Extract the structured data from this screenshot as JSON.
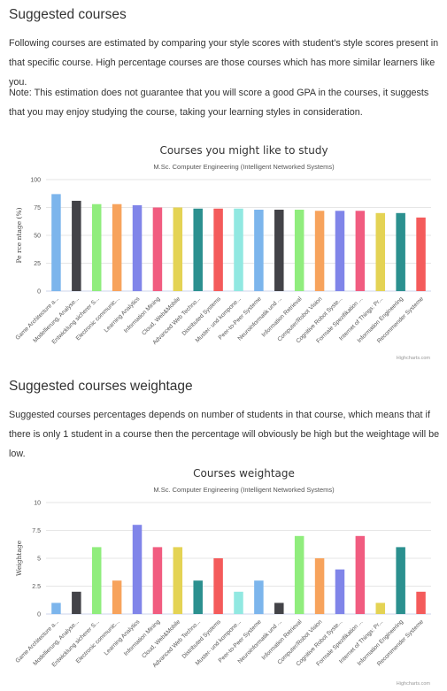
{
  "section1": {
    "heading": "Suggested courses",
    "para1": "Following courses are estimated by comparing your style scores with student's style scores present in that specific course. High percentage courses are those courses which has more similar learners like you.",
    "para2": "Note: This estimation does not guarantee that you will score a good GPA in the courses, it suggests that you may enjoy studying the course, taking your learning styles in consideration."
  },
  "section2": {
    "heading": "Suggested courses weightage",
    "para1": "Suggested courses percentages depends on number of students in that course, which means that if there is only 1 student in a course then the percentage will obviously be high but the weightage will be low."
  },
  "chart_data": [
    {
      "type": "bar",
      "title": "Courses you might like to study",
      "subtitle": "M.Sc. Computer Engineering (Intelligent Networked Systems)",
      "ylabel": "Pe rce ntage (%)",
      "xlabel": "",
      "ylim": [
        0,
        100
      ],
      "yticks": [
        "0",
        "25",
        "50",
        "75",
        "100"
      ],
      "grid": true,
      "legend": "none",
      "credit": "Highcharts.com",
      "categories": [
        "Game Architecture a...",
        "Modellierung, Analyse...",
        "Entwicklung sicherer S...",
        "Electronic communic...",
        "Learning Analytics",
        "Information Mining",
        "Cloud, Web&Mobile",
        "Advanced Web Techno...",
        "Distributed Systems",
        "Muster- und kompone...",
        "Peer-to-Peer Systeme",
        "Neuroinformatik und ...",
        "Information Retrieval",
        "Computer/Robot Vision",
        "Cognitive Robot Syste...",
        "Formale Spezifikation ...",
        "Internet of Things: Pr...",
        "Information Engineering",
        "Recommender Systeme"
      ],
      "values": [
        87,
        81,
        78,
        78,
        77,
        75,
        75,
        74,
        74,
        74,
        73,
        73,
        73,
        72,
        72,
        72,
        70,
        70,
        66
      ],
      "colors": [
        "#7cb5ec",
        "#434348",
        "#90ed7d",
        "#f7a35c",
        "#8085e9",
        "#f15c80",
        "#e4d354",
        "#2b908f",
        "#f45b5b",
        "#91e8e1",
        "#7cb5ec",
        "#434348",
        "#90ed7d",
        "#f7a35c",
        "#8085e9",
        "#f15c80",
        "#e4d354",
        "#2b908f",
        "#f45b5b"
      ]
    },
    {
      "type": "bar",
      "title": "Courses weightage",
      "subtitle": "M.Sc. Computer Engineering (Intelligent Networked Systems)",
      "ylabel": "Weightage",
      "xlabel": "",
      "ylim": [
        0,
        10
      ],
      "yticks": [
        "0",
        "2.5",
        "5",
        "7.5",
        "10"
      ],
      "grid": true,
      "legend": "none",
      "credit": "Highcharts.com",
      "categories": [
        "Game Architecture a...",
        "Modellierung, Analyse...",
        "Entwicklung sicherer S...",
        "Electronic communic...",
        "Learning Analytics",
        "Information Mining",
        "Cloud, Web&Mobile",
        "Advanced Web Techno...",
        "Distributed Systems",
        "Muster- und kompone...",
        "Peer-to-Peer Systeme",
        "Neuroinformatik und ...",
        "Information Retrieval",
        "Computer/Robot Vision",
        "Cognitive Robot Syste...",
        "Formale Spezifikation ...",
        "Internet of Things: Pr...",
        "Information Engineering",
        "Recommender Systeme"
      ],
      "values": [
        1,
        2,
        6,
        3,
        8,
        6,
        6,
        3,
        5,
        2,
        3,
        1,
        7,
        5,
        4,
        7,
        1,
        6,
        2
      ],
      "colors": [
        "#7cb5ec",
        "#434348",
        "#90ed7d",
        "#f7a35c",
        "#8085e9",
        "#f15c80",
        "#e4d354",
        "#2b908f",
        "#f45b5b",
        "#91e8e1",
        "#7cb5ec",
        "#434348",
        "#90ed7d",
        "#f7a35c",
        "#8085e9",
        "#f15c80",
        "#e4d354",
        "#2b908f",
        "#f45b5b"
      ]
    }
  ]
}
